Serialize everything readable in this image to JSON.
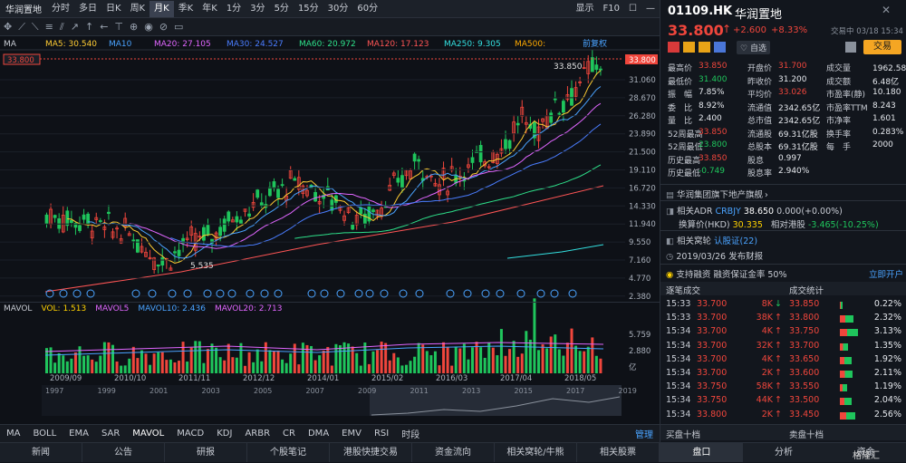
{
  "toolbar": {
    "symbol": "华润置地",
    "periods": [
      "分时",
      "多日",
      "日K",
      "周K",
      "月K",
      "季K",
      "年K",
      "1分",
      "3分",
      "5分",
      "15分",
      "30分",
      "60分"
    ],
    "active_period": "月K",
    "display": "显示",
    "f10": "F10"
  },
  "ma": {
    "label": "MA",
    "ma5": "MA5: 30.540",
    "ma10": "MA10",
    "ma20": "MA20: 27.105",
    "ma30": "MA30: 24.527",
    "ma60": "MA60: 20.972",
    "ma120": "MA120: 17.123",
    "ma250": "MA250: 9.305",
    "ma500": "MA500:",
    "adjust": "前复权"
  },
  "price_axis": [
    "31.060",
    "28.670",
    "26.280",
    "23.890",
    "21.500",
    "19.110",
    "16.720",
    "14.330",
    "11.940",
    "9.550",
    "7.160",
    "4.770",
    "2.380"
  ],
  "current_price_tag": "33.800",
  "high_mark": "33.850",
  "low_mark": "5.535",
  "vol": {
    "label": "MAVOL",
    "vol": "VOL: 1.513",
    "mavol5": "MAVOL5",
    "mavol10": "MAVOL10: 2.436",
    "mavol20": "MAVOL20: 2.713",
    "axis": [
      "5.759",
      "2.880",
      "亿"
    ],
    "unit": "亿"
  },
  "dates": [
    "2009/09",
    "2010/10",
    "2011/11",
    "2012/12",
    "2014/01",
    "2015/02",
    "2016/03",
    "2017/04",
    "2018/05"
  ],
  "years": [
    "1997",
    "1999",
    "2001",
    "2003",
    "2005",
    "2007",
    "2009",
    "2011",
    "2013",
    "2015",
    "2017",
    "2019"
  ],
  "indicators": [
    "MA",
    "BOLL",
    "EMA",
    "SAR",
    "MAVOL",
    "MACD",
    "KDJ",
    "ARBR",
    "CR",
    "DMA",
    "EMV",
    "RSI",
    "时段"
  ],
  "indicator_manage": "管理",
  "bottom_nav": [
    "新闻",
    "公告",
    "研报",
    "个股笔记",
    "港股快捷交易",
    "资金流向",
    "相关窝轮/牛熊",
    "相关股票"
  ],
  "quote": {
    "code": "01109.HK",
    "name": "华润置地",
    "price": "33.800",
    "change": "+2.600",
    "pct": "+8.33%",
    "time": "交易中 03/18 15:34",
    "self_select": "自选",
    "trade": "交易"
  },
  "stats": [
    [
      "最高价",
      "33.850",
      "开盘价",
      "31.700",
      "成交量",
      "1962.58万"
    ],
    [
      "最低价",
      "31.400",
      "昨收价",
      "31.200",
      "成交额",
      "6.48亿"
    ],
    [
      "振　幅",
      "7.85%",
      "平均价",
      "33.026",
      "市盈率(静)",
      "10.180"
    ],
    [
      "委　比",
      "8.92%",
      "流通值",
      "2342.65亿",
      "市盈率TTM",
      "8.243"
    ],
    [
      "量　比",
      "2.400",
      "总市值",
      "2342.65亿",
      "市净率",
      "1.601"
    ],
    [
      "52周最高",
      "33.850",
      "流通股",
      "69.31亿股",
      "换手率",
      "0.283%"
    ],
    [
      "52周最低",
      "23.800",
      "总股本",
      "69.31亿股",
      "每　手",
      "2000"
    ],
    [
      "历史最高",
      "33.850",
      "股息",
      "0.997",
      "",
      ""
    ],
    [
      "历史最低",
      "-0.749",
      "股息率",
      "2.940%",
      "",
      ""
    ]
  ],
  "info": {
    "sector": "华润集团旗下地产旗舰",
    "adr_label": "相关ADR",
    "adr_code": "CRBJY",
    "adr_price": "38.650",
    "adr_change": "0.000(+0.00%)",
    "conv_label": "换算价(HKD)",
    "conv_price": "30.335",
    "premium_label": "相对港股",
    "premium": "-3.465(-10.25%)",
    "warrant": "相关窝轮",
    "warrant_link": "认股证(22)",
    "date": "2019/03/26",
    "event": "发布财报",
    "margin": "支持融资",
    "margin2": "融资保证金率 50%",
    "open_now": "立即开户"
  },
  "trades_header": {
    "left": "逐笔成交",
    "right": "成交统计"
  },
  "trades": [
    [
      "15:33",
      "33.700",
      "8K",
      "down"
    ],
    [
      "15:33",
      "33.700",
      "38K",
      "up"
    ],
    [
      "15:34",
      "33.700",
      "4K",
      "up"
    ],
    [
      "15:34",
      "33.700",
      "32K",
      "up"
    ],
    [
      "15:34",
      "33.700",
      "4K",
      "up"
    ],
    [
      "15:34",
      "33.700",
      "2K",
      "up"
    ],
    [
      "15:34",
      "33.750",
      "58K",
      "up"
    ],
    [
      "15:34",
      "33.750",
      "44K",
      "up"
    ],
    [
      "15:34",
      "33.800",
      "2K",
      "up"
    ]
  ],
  "stats_dist": [
    [
      "33.850",
      "0.22%",
      0.05
    ],
    [
      "33.800",
      "2.32%",
      0.3
    ],
    [
      "33.750",
      "3.13%",
      0.4
    ],
    [
      "33.700",
      "1.35%",
      0.17
    ],
    [
      "33.650",
      "1.92%",
      0.25
    ],
    [
      "33.600",
      "2.11%",
      0.27
    ],
    [
      "33.550",
      "1.19%",
      0.15
    ],
    [
      "33.500",
      "2.04%",
      0.26
    ],
    [
      "33.450",
      "2.56%",
      0.33
    ]
  ],
  "tabs10": {
    "buy": "买盘十档",
    "sell": "卖盘十档"
  },
  "right_nav": [
    "盘口",
    "分析",
    "资金"
  ],
  "watermark": "格隆汇"
}
